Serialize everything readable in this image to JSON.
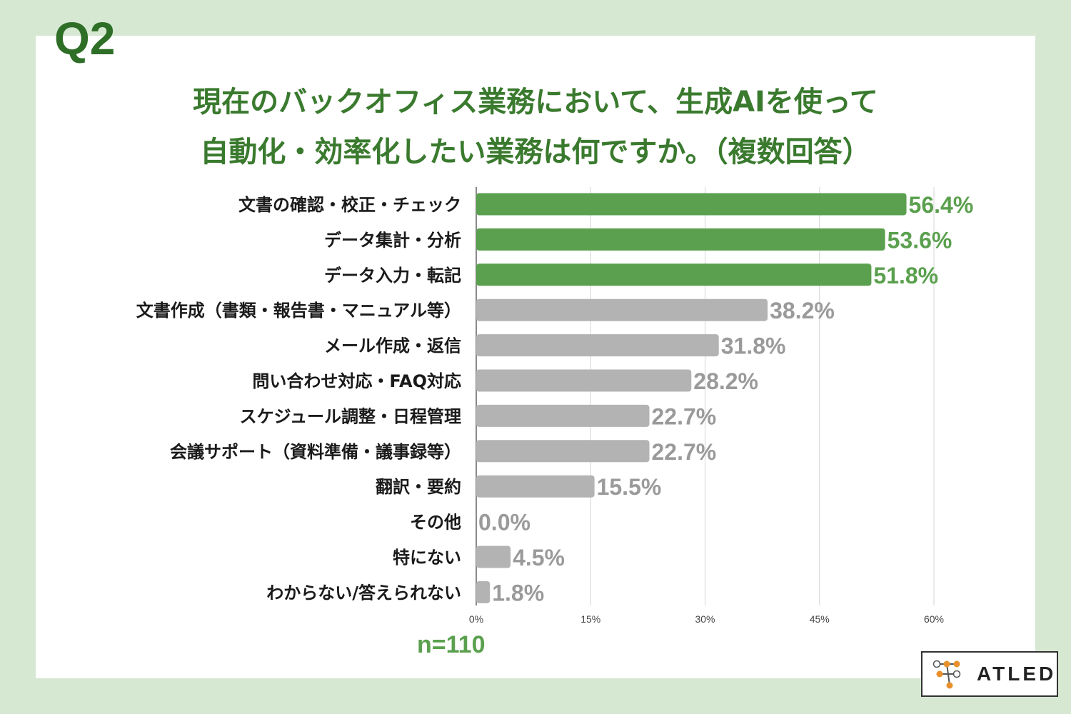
{
  "question_number": "Q2",
  "title_lines": [
    "現在のバックオフィス業務において、生成AIを使って",
    "自動化・効率化したい業務は何ですか。（複数回答）"
  ],
  "sample_size": "n=110",
  "logo": {
    "text": "ATLED"
  },
  "colors": {
    "background": "#d6e8d2",
    "title": "#3a7a2e",
    "highlight_bar": "#5aa04e",
    "other_bar": "#b3b3b3",
    "highlight_label": "#5aa04e",
    "other_label": "#9a9a9a",
    "logo_orange": "#e8912c"
  },
  "chart_data": {
    "type": "bar",
    "orientation": "horizontal",
    "categories": [
      "文書の確認・校正・チェック",
      "データ集計・分析",
      "データ入力・転記",
      "文書作成（書類・報告書・マニュアル等）",
      "メール作成・返信",
      "問い合わせ対応・FAQ対応",
      "スケジュール調整・日程管理",
      "会議サポート（資料準備・議事録等）",
      "翻訳・要約",
      "その他",
      "特にない",
      "わからない/答えられない"
    ],
    "values": [
      56.4,
      53.6,
      51.8,
      38.2,
      31.8,
      28.2,
      22.7,
      22.7,
      15.5,
      0.0,
      4.5,
      1.8
    ],
    "value_labels": [
      "56.4%",
      "53.6%",
      "51.8%",
      "38.2%",
      "31.8%",
      "28.2%",
      "22.7%",
      "22.7%",
      "15.5%",
      "0.0%",
      "4.5%",
      "1.8%"
    ],
    "highlighted": [
      true,
      true,
      true,
      false,
      false,
      false,
      false,
      false,
      false,
      false,
      false,
      false
    ],
    "xlim": [
      0,
      60
    ],
    "xticks": [
      0,
      15,
      30,
      45,
      60
    ],
    "xtick_labels": [
      "0%",
      "15%",
      "30%",
      "45%",
      "60%"
    ],
    "grid": true
  }
}
